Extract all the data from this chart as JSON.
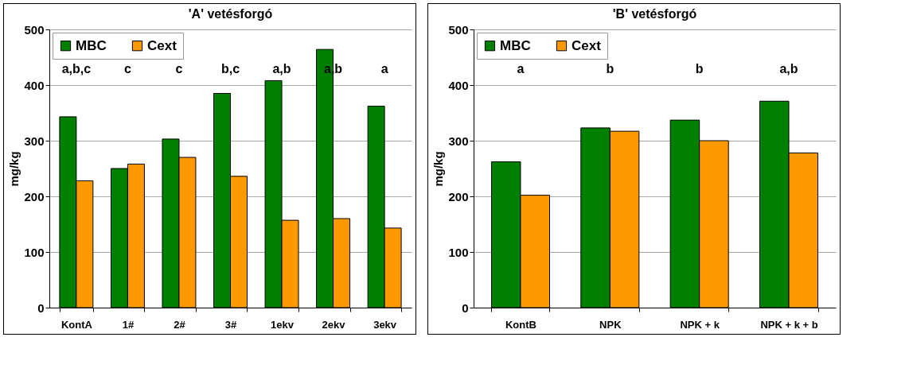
{
  "chart_data": [
    {
      "type": "bar",
      "title": "'A' vetésforgó",
      "ylabel": "mg/kg",
      "categories": [
        "KontA",
        "1#",
        "2#",
        "3#",
        "1ekv",
        "2ekv",
        "3ekv"
      ],
      "series": [
        {
          "name": "MBC",
          "color": "#008000",
          "values": [
            343,
            250,
            303,
            385,
            408,
            464,
            362
          ]
        },
        {
          "name": "Cext",
          "color": "#ff9900",
          "values": [
            228,
            258,
            270,
            236,
            157,
            160,
            143
          ]
        }
      ],
      "ylim": [
        0,
        500
      ],
      "yticks": [
        0,
        100,
        200,
        300,
        400,
        500
      ],
      "grid": "y",
      "legend": "top left",
      "annotations": [
        "a,b,c",
        "c",
        "c",
        "b,c",
        "a,b",
        "a,b",
        "a"
      ]
    },
    {
      "type": "bar",
      "title": "'B' vetésforgó",
      "ylabel": "mg/kg",
      "categories": [
        "KontB",
        "NPK",
        "NPK + k",
        "NPK + k + b"
      ],
      "series": [
        {
          "name": "MBC",
          "color": "#008000",
          "values": [
            262,
            323,
            337,
            371
          ]
        },
        {
          "name": "Cext",
          "color": "#ff9900",
          "values": [
            202,
            317,
            300,
            278
          ]
        }
      ],
      "ylim": [
        0,
        500
      ],
      "yticks": [
        0,
        100,
        200,
        300,
        400,
        500
      ],
      "grid": "y",
      "legend": "top left",
      "annotations": [
        "a",
        "b",
        "b",
        "a,b"
      ]
    }
  ]
}
